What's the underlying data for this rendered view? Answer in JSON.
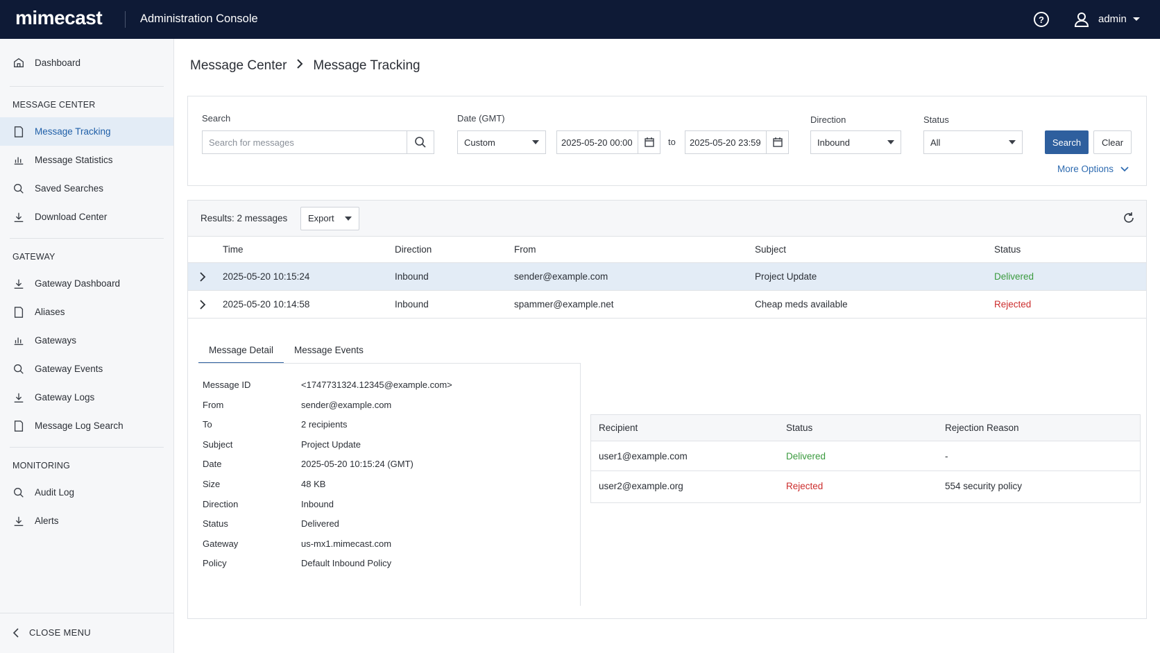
{
  "header": {
    "logo": "mimecast",
    "title": "Administration Console",
    "user": "admin"
  },
  "sidebar": {
    "dashboard": "Dashboard",
    "sections": [
      {
        "title": "MESSAGE CENTER",
        "items": [
          "Message Tracking",
          "Message Statistics",
          "Saved Searches",
          "Download Center"
        ]
      },
      {
        "title": "GATEWAY",
        "items": [
          "Gateway Dashboard",
          "Aliases",
          "Gateways",
          "Gateway Events",
          "Gateway Logs",
          "Message Log Search"
        ]
      },
      {
        "title": "MONITORING",
        "items": [
          "Audit Log",
          "Alerts"
        ]
      }
    ],
    "close": "CLOSE MENU"
  },
  "breadcrumb": [
    "Message Center",
    "Message Tracking"
  ],
  "filters": {
    "search_label": "Search",
    "search_placeholder": "Search for messages",
    "date_label": "Date (GMT)",
    "date_mode": "Custom",
    "date_from": "2025-05-20 00:00",
    "to": "to",
    "date_to": "2025-05-20 23:59",
    "direction_label": "Direction",
    "direction": "Inbound",
    "status_label": "Status",
    "status": "All",
    "search_button": "Search",
    "clear_button": "Clear",
    "more_options": "More Options"
  },
  "results": {
    "summary": "Results: 2 messages",
    "export": "Export",
    "columns": [
      "Time",
      "Direction",
      "From",
      "Subject",
      "Status"
    ],
    "rows": [
      [
        "2025-05-20 10:15:24",
        "Inbound",
        "sender@example.com",
        "Project Update",
        "Delivered"
      ],
      [
        "2025-05-20 10:14:58",
        "Inbound",
        "spammer@example.net",
        "Cheap meds available",
        "Rejected"
      ]
    ]
  },
  "detail": {
    "tabs": [
      "Message Detail",
      "Message Events"
    ],
    "fields": [
      [
        "Message ID",
        "<1747731324.12345@example.com>"
      ],
      [
        "From",
        "sender@example.com"
      ],
      [
        "To",
        "2 recipients"
      ],
      [
        "Subject",
        "Project Update"
      ],
      [
        "Date",
        "2025-05-20 10:15:24 (GMT)"
      ],
      [
        "Size",
        "48 KB"
      ],
      [
        "Direction",
        "Inbound"
      ],
      [
        "Status",
        "Delivered"
      ],
      [
        "Gateway",
        "us-mx1.mimecast.com"
      ],
      [
        "Policy",
        "Default Inbound Policy"
      ]
    ]
  },
  "recipients": {
    "columns": [
      "Recipient",
      "Status",
      "Rejection Reason"
    ],
    "rows": [
      [
        "user1@example.com",
        "Delivered",
        "-"
      ],
      [
        "user2@example.org",
        "Rejected",
        "554 security policy"
      ]
    ]
  }
}
